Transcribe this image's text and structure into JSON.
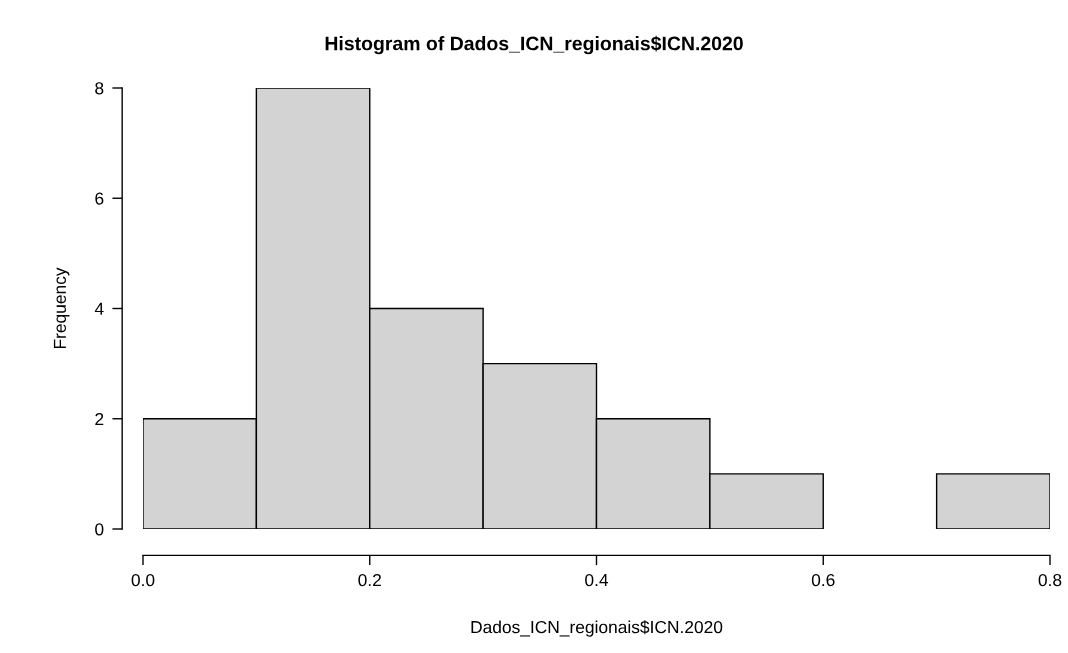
{
  "chart_data": {
    "type": "histogram",
    "title": "Histogram of Dados_ICN_regionais$ICN.2020",
    "xlabel": "Dados_ICN_regionais$ICN.2020",
    "ylabel": "Frequency",
    "bins": [
      0.0,
      0.1,
      0.2,
      0.3,
      0.4,
      0.5,
      0.6,
      0.7,
      0.8
    ],
    "values": [
      2,
      8,
      4,
      3,
      2,
      1,
      0,
      1
    ],
    "color": "#d3d3d3",
    "xlim": [
      0.0,
      0.8
    ],
    "ylim": [
      0,
      8
    ],
    "xticks": [
      {
        "value": 0.0,
        "label": "0.0"
      },
      0.2,
      0.4,
      0.6,
      0.8
    ],
    "yticks": [
      0,
      2,
      4,
      6,
      8
    ],
    "grid": false,
    "legend": false
  }
}
